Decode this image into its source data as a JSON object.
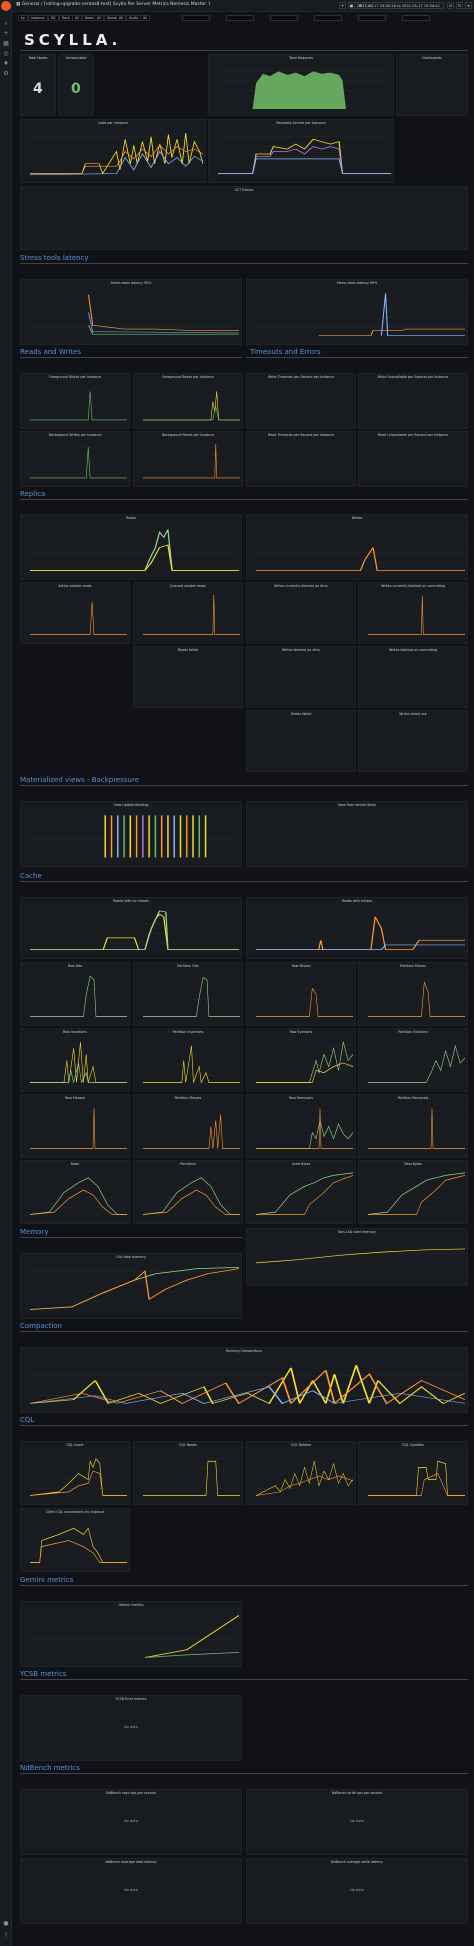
{
  "breadcrumb": {
    "folder": "General",
    "dashboard": "[rolling-upgrade-centos8-test] Scylla Per Server Metrics Nemesis Master",
    "separator": "/"
  },
  "logo": "SCYLLA.",
  "icons": {
    "starred": "star-icon",
    "share": "share-icon",
    "add": "add-panel-icon",
    "save": "save-icon",
    "settings": "gear-icon",
    "cycle": "tv-icon",
    "zoom": "zoom-out-icon",
    "refresh": "refresh-icon"
  },
  "topbar": {
    "time_range": "2021-05-17 16:40:26 to 2021-05-17 19:54:41"
  },
  "vars": [
    "by",
    "Instance",
    "DC",
    "Rack",
    "All",
    "Node",
    "All",
    "Shard",
    "All",
    "Scylla",
    "All"
  ],
  "rows": {
    "stress": "Stress tools latency",
    "reads_writes": "Reads and Writes",
    "timeouts": "Timeouts and Errors",
    "replica": "Replica",
    "mv": "Materialized views - Backpressure",
    "cache": "Cache",
    "memory": "Memory",
    "compaction": "Compaction",
    "cql": "CQL",
    "gemini": "Gemini metrics",
    "ycsb": "YCSB metrics",
    "ndbench": "NdBench metrics"
  },
  "stats": {
    "total_nodes_label": "Total Nodes",
    "total_nodes": "4",
    "unreachable_label": "Unreachable",
    "unreachable": "0"
  },
  "panels": {
    "total_requests": "Total Requests",
    "dashboards": "Dashboards",
    "load": "Load per Instance",
    "requests_served": "Requests Served per Instance",
    "scylla_events": "SCT Events",
    "stress_p95": "Stress tools latency 95%",
    "stress_p99": "Stress tools latency 99%",
    "fg_writes": "Foreground Writes per Instance",
    "fg_reads": "Foreground Reads per Instance",
    "write_timeouts": "Write Timeouts per Second per Instance",
    "write_unavail": "Write Unavailable per Second per Instance",
    "bg_writes": "Background Writes per Instance",
    "bg_reads": "Background Reads per Instance",
    "read_timeouts": "Read Timeouts per Second per Instance",
    "read_unavail": "Read Unavailable per Second per Instance",
    "reads": "Reads",
    "writes": "Writes",
    "active_sstable": "Active sstable reads",
    "queued_sstable": "Queued sstable reads",
    "writes_blocked_dirty": "Writes currently blocked on dirty",
    "writes_blocked_commitlog": "Writes currently blocked on commitlog",
    "reads_failed": "Reads failed",
    "writes_blocked_on_dirty": "Writes blocked on dirty",
    "writes_blocked_on_commitlog": "Writes blocked on commitlog",
    "writes_failed": "Writes failed",
    "writes_timed_out": "Writes timed out",
    "view_update_backlog": "View Update Backlog",
    "view_flow_control": "View flow control delay",
    "reads_no_misses": "Reads with no misses",
    "reads_with_misses": "Reads with misses",
    "row_hits": "Row Hits",
    "partition_hits": "Partition Hits",
    "row_misses": "Row Misses",
    "partition_misses": "Partition Misses",
    "row_insertions": "Row Insertions",
    "partition_insertions": "Partition Insertions",
    "row_evictions": "Row Evictions",
    "partition_evictions": "Partition Evictions",
    "row_merges": "Row Merges",
    "partition_merges": "Partition Merges",
    "row_removals": "Row Removals",
    "partition_removals": "Partition Removals",
    "rows": "Rows",
    "partitions": "Partitions",
    "used_bytes": "Used Bytes",
    "total_bytes": "Total Bytes",
    "lsa_free": "LSA total memory",
    "non_lsa": "Non-LSA used memory",
    "running_compactions": "Running Compactions",
    "cql_insert": "CQL Insert",
    "cql_reads": "CQL Reads",
    "cql_deletes": "CQL Deletes",
    "cql_updates": "CQL Updates",
    "client_cql": "Client CQL connections by instance",
    "gemini_metrics": "Gemini metrics",
    "ycsb_errors": "YCSB Error metrics",
    "nd_read_ops": "NdBench read ops per second",
    "nd_write_ops": "NdBench write ops per second",
    "nd_read_latency": "NdBench average read latency",
    "nd_write_latency": "NdBench average write latency"
  },
  "no_data": "No data",
  "colors": {
    "green": "#73bf69",
    "yellow": "#fade2a",
    "blue": "#5794f2",
    "orange": "#ff9830",
    "red": "#f2495c",
    "purple": "#b877d9",
    "teal": "#8ab8ff",
    "mint": "#96d98d"
  }
}
